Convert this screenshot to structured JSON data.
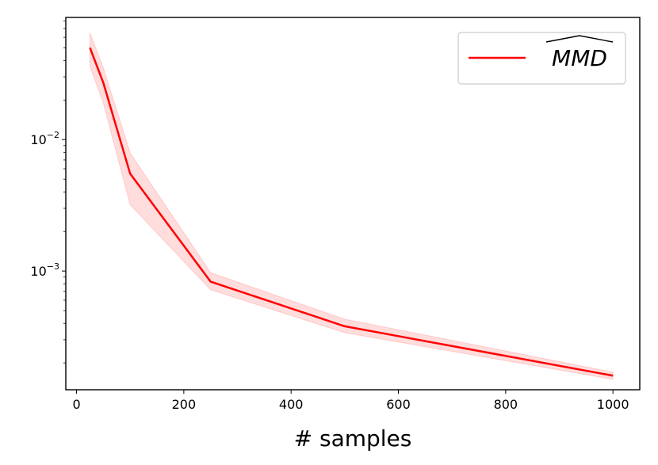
{
  "chart_data": {
    "type": "line",
    "xlabel": "# samples",
    "ylabel": "",
    "xlim": [
      -20,
      1050
    ],
    "ylim": [
      0.000125,
      0.085
    ],
    "yscale": "log",
    "xticks": [
      0,
      200,
      400,
      600,
      800,
      1000
    ],
    "xtick_labels": [
      "0",
      "200",
      "400",
      "600",
      "800",
      "1000"
    ],
    "yticks": [
      0.001,
      0.01
    ],
    "ytick_labels": [
      {
        "base": "10",
        "exp": "−3"
      },
      {
        "base": "10",
        "exp": "−2"
      }
    ],
    "grid": false,
    "legend": {
      "placement": "top-right",
      "entries": [
        "MMD"
      ]
    },
    "series": [
      {
        "name": "MMD",
        "color": "#ff0000",
        "band_color": "#ffb3b3",
        "x": [
          25,
          50,
          100,
          250,
          500,
          1000
        ],
        "y": [
          0.05,
          0.027,
          0.0055,
          0.00083,
          0.00038,
          0.00016
        ],
        "lower": [
          0.036,
          0.019,
          0.0032,
          0.00072,
          0.00034,
          0.00015
        ],
        "upper": [
          0.065,
          0.035,
          0.0079,
          0.00097,
          0.00043,
          0.00017
        ]
      }
    ]
  }
}
